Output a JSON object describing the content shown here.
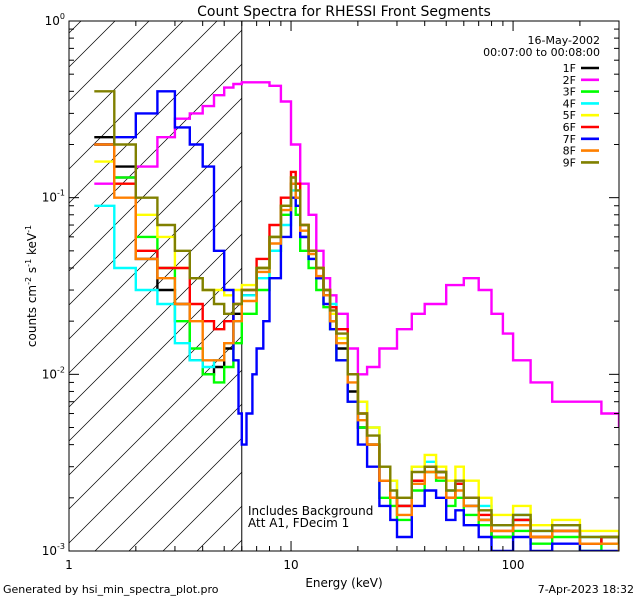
{
  "chart_data": {
    "type": "line",
    "title": "Count Spectra for RHESSI Front Segments",
    "xlabel": "Energy (keV)",
    "ylabel_parts": {
      "base": "counts cm",
      "e1": "-2",
      "mid": " s",
      "e2": "-1",
      "end": " keV",
      "e3": "-1"
    },
    "xscale": "log",
    "yscale": "log",
    "xlim": [
      1.0,
      300
    ],
    "ylim": [
      0.001,
      1
    ],
    "x_ticks": [
      {
        "value": 1,
        "label": "1"
      },
      {
        "value": 10,
        "label": "10"
      },
      {
        "value": 100,
        "label": "100"
      }
    ],
    "y_ticks": [
      {
        "value": 0.001,
        "base": "10",
        "exp": "-3"
      },
      {
        "value": 0.01,
        "base": "10",
        "exp": "-2"
      },
      {
        "value": 0.1,
        "base": "10",
        "exp": "-1"
      },
      {
        "value": 1,
        "base": "10",
        "exp": "0"
      }
    ],
    "info_lines": [
      "16-May-2002",
      "00:07:00 to 00:08:00"
    ],
    "annotations": [
      "Includes Background",
      "Att A1, FDecim 1"
    ],
    "hatch_region_x": [
      1.0,
      6.0
    ],
    "legend_position": "top-right",
    "series": [
      {
        "name": "1F",
        "color": "#000000",
        "x": [
          1.3,
          1.6,
          2.0,
          2.5,
          3.0,
          3.5,
          4.0,
          4.5,
          5.0,
          5.5,
          6.0,
          7,
          8,
          9,
          10,
          10.5,
          11,
          12,
          13,
          14,
          15,
          16,
          18,
          20,
          22,
          25,
          28,
          30,
          35,
          40,
          45,
          50,
          55,
          60,
          70,
          80,
          100,
          120,
          150,
          200,
          250,
          300
        ],
        "y": [
          0.22,
          0.15,
          0.045,
          0.03,
          0.025,
          0.012,
          0.01,
          0.011,
          0.014,
          0.022,
          0.028,
          0.04,
          0.06,
          0.09,
          0.12,
          0.1,
          0.06,
          0.05,
          0.035,
          0.028,
          0.02,
          0.014,
          0.008,
          0.005,
          0.004,
          0.0025,
          0.002,
          0.0018,
          0.0025,
          0.003,
          0.0028,
          0.002,
          0.0024,
          0.0018,
          0.0015,
          0.0012,
          0.0015,
          0.0012,
          0.0013,
          0.0011,
          0.0012,
          0.0012
        ]
      },
      {
        "name": "2F",
        "color": "#ff00ff",
        "x": [
          1.3,
          1.6,
          2.0,
          2.5,
          3.0,
          3.5,
          4.0,
          4.5,
          5.0,
          5.5,
          6.0,
          7,
          8,
          9,
          10,
          11,
          12,
          13,
          14,
          15,
          16,
          18,
          20,
          22,
          25,
          30,
          35,
          40,
          50,
          60,
          70,
          80,
          90,
          100,
          120,
          150,
          200,
          250,
          300
        ],
        "y": [
          0.12,
          0.13,
          0.15,
          0.22,
          0.28,
          0.3,
          0.33,
          0.38,
          0.42,
          0.44,
          0.45,
          0.45,
          0.43,
          0.35,
          0.2,
          0.12,
          0.08,
          0.05,
          0.035,
          0.028,
          0.022,
          0.014,
          0.01,
          0.011,
          0.014,
          0.018,
          0.022,
          0.025,
          0.032,
          0.035,
          0.03,
          0.022,
          0.017,
          0.012,
          0.009,
          0.007,
          0.007,
          0.006,
          0.005
        ]
      },
      {
        "name": "3F",
        "color": "#00ff00",
        "x": [
          1.3,
          1.6,
          2.0,
          2.5,
          3.0,
          3.5,
          4.0,
          4.5,
          5.0,
          5.5,
          6.0,
          7,
          8,
          9,
          10,
          10.5,
          11,
          12,
          13,
          14,
          15,
          16,
          18,
          20,
          22,
          25,
          28,
          30,
          35,
          40,
          45,
          50,
          55,
          60,
          70,
          80,
          100,
          120,
          150,
          200,
          250,
          300
        ],
        "y": [
          0.2,
          0.13,
          0.06,
          0.04,
          0.02,
          0.014,
          0.01,
          0.009,
          0.011,
          0.015,
          0.022,
          0.03,
          0.05,
          0.08,
          0.1,
          0.08,
          0.05,
          0.04,
          0.03,
          0.024,
          0.018,
          0.012,
          0.007,
          0.005,
          0.004,
          0.002,
          0.0018,
          0.0015,
          0.0022,
          0.0028,
          0.0025,
          0.0018,
          0.002,
          0.0016,
          0.0014,
          0.0012,
          0.0013,
          0.0011,
          0.0012,
          0.001,
          0.0011,
          0.001
        ]
      },
      {
        "name": "4F",
        "color": "#00ffff",
        "x": [
          1.3,
          1.6,
          2.0,
          2.5,
          3.0,
          3.5,
          4.0,
          4.5,
          5.0,
          5.5,
          6.0,
          7,
          8,
          9,
          10,
          10.5,
          11,
          12,
          13,
          14,
          15,
          16,
          18,
          20,
          22,
          25,
          28,
          30,
          35,
          40,
          45,
          50,
          55,
          60,
          70,
          80,
          100,
          120,
          150,
          200,
          250,
          300
        ],
        "y": [
          0.09,
          0.04,
          0.03,
          0.025,
          0.015,
          0.012,
          0.011,
          0.012,
          0.015,
          0.02,
          0.028,
          0.035,
          0.05,
          0.07,
          0.11,
          0.09,
          0.06,
          0.045,
          0.035,
          0.03,
          0.025,
          0.018,
          0.01,
          0.007,
          0.005,
          0.003,
          0.0025,
          0.002,
          0.003,
          0.0032,
          0.0028,
          0.0022,
          0.0025,
          0.002,
          0.0018,
          0.0014,
          0.0016,
          0.0013,
          0.0014,
          0.0012,
          0.0012,
          0.0011
        ]
      },
      {
        "name": "5F",
        "color": "#ffff00",
        "x": [
          1.3,
          1.6,
          2.0,
          2.5,
          3.0,
          3.5,
          4.0,
          4.5,
          5.0,
          5.5,
          6.0,
          7,
          8,
          9,
          10,
          10.5,
          11,
          12,
          13,
          14,
          15,
          16,
          18,
          20,
          22,
          25,
          28,
          30,
          35,
          40,
          45,
          50,
          55,
          60,
          70,
          80,
          100,
          120,
          150,
          200,
          250,
          300
        ],
        "y": [
          0.16,
          0.12,
          0.08,
          0.06,
          0.04,
          0.035,
          0.03,
          0.03,
          0.028,
          0.03,
          0.032,
          0.04,
          0.06,
          0.09,
          0.13,
          0.11,
          0.07,
          0.05,
          0.04,
          0.03,
          0.022,
          0.016,
          0.01,
          0.007,
          0.005,
          0.003,
          0.0025,
          0.002,
          0.003,
          0.0035,
          0.003,
          0.0025,
          0.003,
          0.0025,
          0.002,
          0.0016,
          0.0018,
          0.0014,
          0.0015,
          0.0013,
          0.0013,
          0.0012
        ]
      },
      {
        "name": "6F",
        "color": "#ff0000",
        "x": [
          1.3,
          1.6,
          2.0,
          2.5,
          3.0,
          3.5,
          4.0,
          4.5,
          5.0,
          5.5,
          6.0,
          7,
          8,
          9,
          10,
          10.5,
          11,
          12,
          13,
          14,
          15,
          16,
          18,
          20,
          22,
          25,
          28,
          30,
          35,
          40,
          45,
          50,
          55,
          60,
          70,
          80,
          100,
          120,
          150,
          200,
          250,
          300
        ],
        "y": [
          0.2,
          0.12,
          0.05,
          0.04,
          0.04,
          0.025,
          0.02,
          0.018,
          0.02,
          0.025,
          0.03,
          0.045,
          0.07,
          0.1,
          0.14,
          0.12,
          0.07,
          0.05,
          0.04,
          0.03,
          0.024,
          0.018,
          0.01,
          0.006,
          0.004,
          0.0025,
          0.002,
          0.0018,
          0.0025,
          0.003,
          0.0028,
          0.002,
          0.0024,
          0.002,
          0.0016,
          0.0013,
          0.0015,
          0.0012,
          0.0013,
          0.0011,
          0.0012,
          0.0011
        ]
      },
      {
        "name": "7F",
        "color": "#0000ff",
        "x": [
          1.3,
          1.6,
          2.0,
          2.5,
          3.0,
          3.5,
          4.0,
          4.5,
          5.0,
          5.5,
          5.8,
          6.0,
          6.3,
          6.7,
          7,
          7.5,
          8,
          9,
          10,
          10.5,
          11,
          12,
          13,
          14,
          15,
          16,
          18,
          20,
          22,
          25,
          28,
          30,
          35,
          40,
          45,
          50,
          55,
          60,
          70,
          80,
          100,
          120,
          150,
          200,
          250,
          300
        ],
        "y": [
          0.2,
          0.22,
          0.3,
          0.4,
          0.25,
          0.2,
          0.15,
          0.05,
          0.03,
          0.012,
          0.006,
          0.004,
          0.006,
          0.01,
          0.014,
          0.02,
          0.035,
          0.06,
          0.1,
          0.09,
          0.06,
          0.045,
          0.035,
          0.025,
          0.018,
          0.012,
          0.007,
          0.004,
          0.003,
          0.0018,
          0.0015,
          0.0012,
          0.0018,
          0.0022,
          0.002,
          0.0015,
          0.0017,
          0.0014,
          0.0012,
          0.001,
          0.0012,
          0.001,
          0.0011,
          0.001,
          0.001,
          0.001
        ]
      },
      {
        "name": "8F",
        "color": "#ff8000",
        "x": [
          1.3,
          1.6,
          2.0,
          2.5,
          3.0,
          3.5,
          4.0,
          4.5,
          5.0,
          5.5,
          6.0,
          7,
          8,
          9,
          10,
          10.5,
          11,
          12,
          13,
          14,
          15,
          16,
          18,
          20,
          22,
          25,
          28,
          30,
          35,
          40,
          45,
          50,
          55,
          60,
          70,
          80,
          100,
          120,
          150,
          200,
          250,
          300
        ],
        "y": [
          0.2,
          0.1,
          0.045,
          0.035,
          0.025,
          0.02,
          0.012,
          0.012,
          0.015,
          0.02,
          0.026,
          0.038,
          0.055,
          0.085,
          0.12,
          0.1,
          0.065,
          0.048,
          0.036,
          0.028,
          0.02,
          0.015,
          0.009,
          0.0055,
          0.004,
          0.0025,
          0.002,
          0.0016,
          0.0024,
          0.0028,
          0.0026,
          0.002,
          0.0022,
          0.0018,
          0.0015,
          0.0013,
          0.0014,
          0.0012,
          0.0013,
          0.0011,
          0.0011,
          0.001
        ]
      },
      {
        "name": "9F",
        "color": "#808000",
        "x": [
          1.3,
          1.6,
          2.0,
          2.5,
          3.0,
          3.5,
          4.0,
          4.5,
          5.0,
          5.5,
          6.0,
          7,
          8,
          9,
          10,
          10.5,
          11,
          12,
          13,
          14,
          15,
          16,
          18,
          20,
          22,
          25,
          28,
          30,
          35,
          40,
          45,
          50,
          55,
          60,
          70,
          80,
          100,
          120,
          150,
          200,
          250,
          300
        ],
        "y": [
          0.4,
          0.2,
          0.1,
          0.07,
          0.05,
          0.035,
          0.03,
          0.025,
          0.022,
          0.025,
          0.03,
          0.04,
          0.06,
          0.09,
          0.13,
          0.11,
          0.07,
          0.05,
          0.04,
          0.03,
          0.023,
          0.017,
          0.01,
          0.006,
          0.0045,
          0.003,
          0.0022,
          0.002,
          0.0028,
          0.003,
          0.0028,
          0.0022,
          0.0025,
          0.002,
          0.0017,
          0.0014,
          0.0016,
          0.0013,
          0.0014,
          0.0012,
          0.0012,
          0.0011
        ]
      }
    ]
  },
  "footer": {
    "left": "Generated by hsi_min_spectra_plot.pro",
    "right": "7-Apr-2023 18:32"
  }
}
